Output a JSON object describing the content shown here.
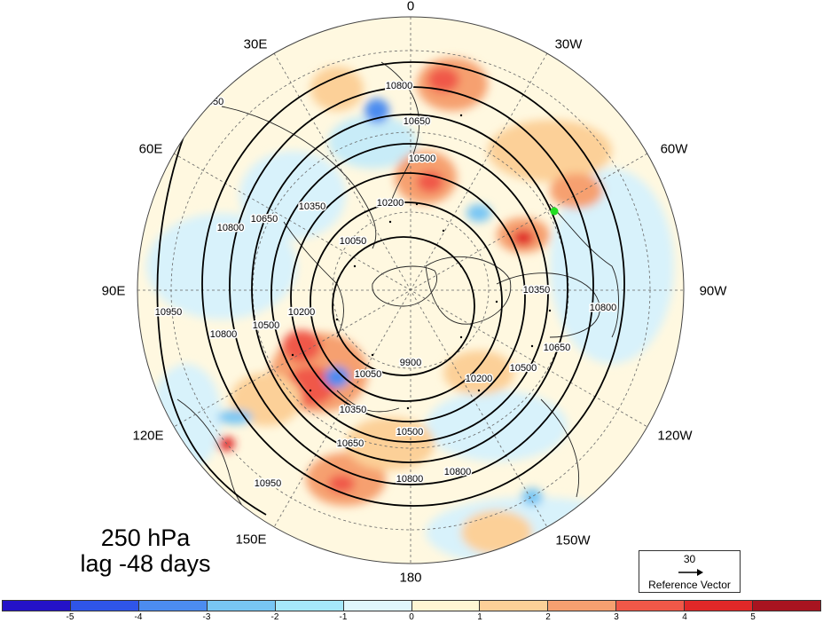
{
  "map": {
    "projection": "north polar stereographic",
    "center": "North Pole",
    "longitude_labels": [
      "0",
      "30W",
      "60W",
      "90W",
      "120W",
      "150W",
      "180",
      "150E",
      "120E",
      "90E",
      "60E",
      "30E"
    ],
    "contour_labels": [
      "10800",
      "10650",
      "10500",
      "10350",
      "10200",
      "10050",
      "9900",
      "10950"
    ],
    "marker_color": "#22dd22"
  },
  "title": {
    "line1": "250 hPa",
    "line2": "lag -48 days"
  },
  "reference_vector": {
    "magnitude": "30",
    "label": "Reference Vector"
  },
  "colorbar": {
    "colors": [
      "#2412c8",
      "#2f55e8",
      "#4c8cf0",
      "#78c6f4",
      "#a6e8fa",
      "#e0f7fc",
      "#fff6d4",
      "#fcd098",
      "#f6a070",
      "#f05848",
      "#e02828",
      "#a81420"
    ],
    "labels": [
      "-5",
      "-4",
      "-3",
      "-2",
      "-1",
      "0",
      "1",
      "2",
      "3",
      "4",
      "5"
    ]
  }
}
